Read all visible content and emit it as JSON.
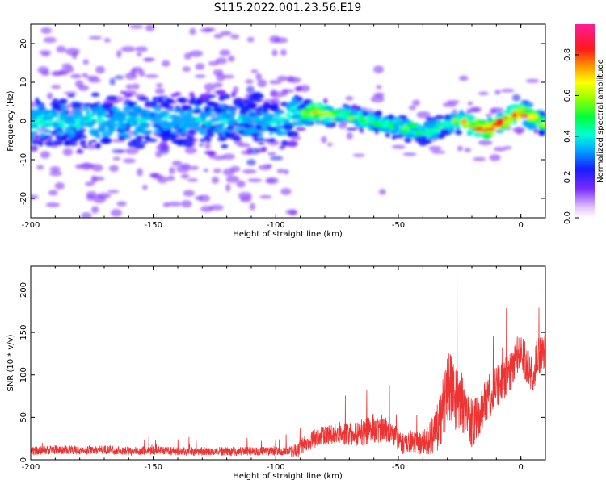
{
  "title": "S115.2022.001.23.56.E19",
  "colors": {
    "snr_line": "#ee3333",
    "frame": "#000000"
  },
  "chart_data": [
    {
      "type": "heatmap",
      "title": "",
      "xlabel": "Height of straight line (km)",
      "ylabel": "Frequency (Hz)",
      "xlim": [
        -200,
        10
      ],
      "ylim": [
        -25,
        25
      ],
      "xticks": [
        -200,
        -150,
        -100,
        -50,
        0
      ],
      "yticks": [
        -20,
        -10,
        0,
        10,
        20
      ],
      "ridge_center_hz": [
        [
          -200,
          0
        ],
        [
          -190,
          0
        ],
        [
          -180,
          0
        ],
        [
          -170,
          0
        ],
        [
          -160,
          0
        ],
        [
          -150,
          0
        ],
        [
          -140,
          0
        ],
        [
          -130,
          0
        ],
        [
          -120,
          0
        ],
        [
          -110,
          0
        ],
        [
          -100,
          0
        ],
        [
          -90,
          1.5
        ],
        [
          -85,
          2.5
        ],
        [
          -75,
          1.5
        ],
        [
          -65,
          0.5
        ],
        [
          -55,
          -1
        ],
        [
          -45,
          -2
        ],
        [
          -40,
          -3
        ],
        [
          -35,
          -2
        ],
        [
          -30,
          -1
        ],
        [
          -25,
          0
        ],
        [
          -20,
          -1
        ],
        [
          -15,
          -2
        ],
        [
          -10,
          -1
        ],
        [
          -5,
          1
        ],
        [
          0,
          2
        ],
        [
          5,
          1
        ],
        [
          10,
          -1
        ]
      ],
      "peak_amplitude": [
        [
          -200,
          0.35
        ],
        [
          -150,
          0.3
        ],
        [
          -100,
          0.3
        ],
        [
          -90,
          0.4
        ],
        [
          -85,
          0.75
        ],
        [
          -70,
          0.5
        ],
        [
          -55,
          0.45
        ],
        [
          -45,
          0.5
        ],
        [
          -30,
          0.4
        ],
        [
          -25,
          0.6
        ],
        [
          -15,
          0.95
        ],
        [
          -10,
          0.8
        ],
        [
          0,
          0.85
        ],
        [
          10,
          0.6
        ]
      ],
      "colorbar": {
        "label": "Normalized spectral amplitude",
        "range": [
          0,
          0.95
        ],
        "ticks": [
          "0.0",
          "0.2",
          "0.4",
          "0.6",
          "0.8"
        ]
      }
    },
    {
      "type": "line",
      "title": "",
      "xlabel": "Height of straight line (km)",
      "ylabel": "SNR (10 * v/v)",
      "xlim": [
        -200,
        10
      ],
      "ylim": [
        0,
        228
      ],
      "xticks": [
        -200,
        -150,
        -100,
        -50,
        0
      ],
      "yticks": [
        0,
        50,
        100,
        150,
        200
      ],
      "series": [
        {
          "points": [
            [
              -200,
              10
            ],
            [
              -190,
              12
            ],
            [
              -180,
              11
            ],
            [
              -170,
              12
            ],
            [
              -160,
              10
            ],
            [
              -150,
              11
            ],
            [
              -140,
              10
            ],
            [
              -130,
              10
            ],
            [
              -120,
              10
            ],
            [
              -110,
              10
            ],
            [
              -100,
              10
            ],
            [
              -92,
              10
            ],
            [
              -88,
              20
            ],
            [
              -82,
              28
            ],
            [
              -75,
              32
            ],
            [
              -68,
              30
            ],
            [
              -62,
              35
            ],
            [
              -57,
              38
            ],
            [
              -52,
              30
            ],
            [
              -48,
              18
            ],
            [
              -45,
              20
            ],
            [
              -40,
              20
            ],
            [
              -35,
              32
            ],
            [
              -32,
              55
            ],
            [
              -30,
              90
            ],
            [
              -28,
              80
            ],
            [
              -25,
              70
            ],
            [
              -22,
              55
            ],
            [
              -20,
              40
            ],
            [
              -17,
              55
            ],
            [
              -14,
              70
            ],
            [
              -10,
              85
            ],
            [
              -7,
              95
            ],
            [
              -4,
              105
            ],
            [
              -2,
              120
            ],
            [
              0,
              130
            ],
            [
              2,
              115
            ],
            [
              4,
              100
            ],
            [
              6,
              110
            ],
            [
              8,
              125
            ],
            [
              10,
              135
            ]
          ],
          "noise": [
            [
              -200,
              5
            ],
            [
              -95,
              5
            ],
            [
              -90,
              10
            ],
            [
              -70,
              14
            ],
            [
              -60,
              18
            ],
            [
              -55,
              15
            ],
            [
              -50,
              12
            ],
            [
              -40,
              14
            ],
            [
              -35,
              25
            ],
            [
              -30,
              45
            ],
            [
              -25,
              40
            ],
            [
              -20,
              30
            ],
            [
              -15,
              28
            ],
            [
              -10,
              25
            ],
            [
              0,
              22
            ],
            [
              10,
              25
            ]
          ]
        }
      ]
    }
  ]
}
